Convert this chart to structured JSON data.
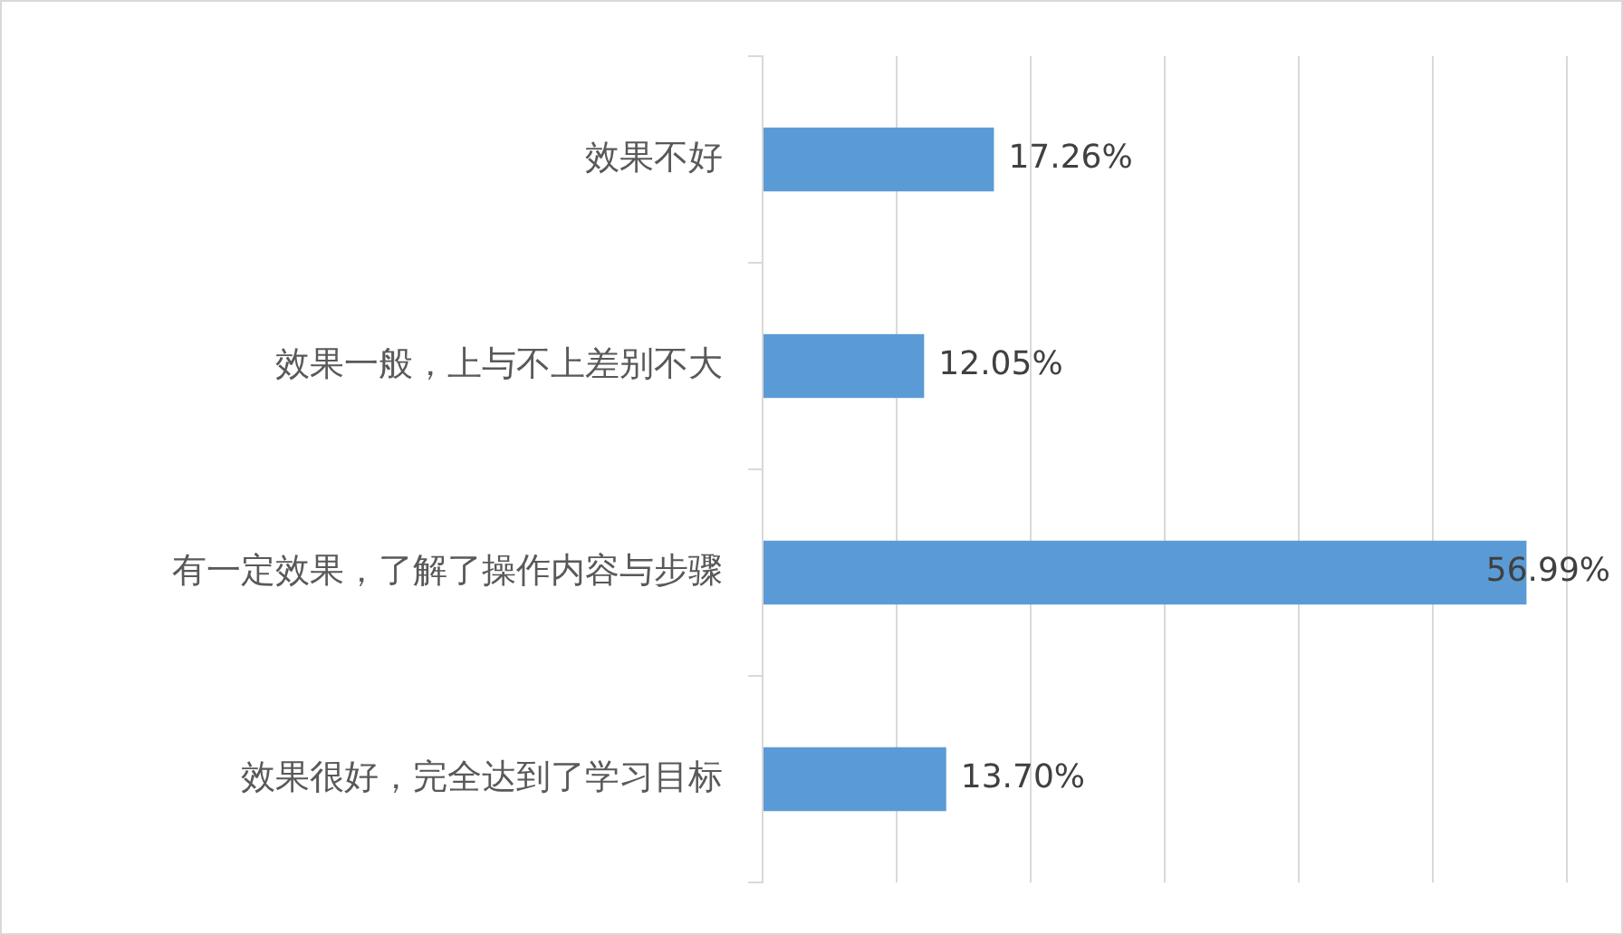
{
  "chart_data": {
    "type": "bar",
    "orientation": "horizontal",
    "categories": [
      "效果不好",
      "效果一般，上与不上差别不大",
      "有一定效果，了解了操作内容与步骤",
      "效果很好，完全达到了学习目标"
    ],
    "values": [
      17.26,
      12.05,
      56.99,
      13.7
    ],
    "value_labels": [
      "17.26%",
      "12.05%",
      "56.99%",
      "13.70%"
    ],
    "color": "#5b9bd5",
    "xlim": [
      0,
      60
    ],
    "xticks": [
      {
        "value": 0,
        "label": null
      },
      {
        "value": 10,
        "label": null
      },
      {
        "value": 20,
        "label": null
      },
      {
        "value": 30,
        "label": null
      },
      {
        "value": 40,
        "label": null
      },
      {
        "value": 50,
        "label": null
      },
      {
        "value": 60,
        "label": null
      }
    ],
    "tick_labels": "y",
    "grid": "x",
    "legend": false
  }
}
